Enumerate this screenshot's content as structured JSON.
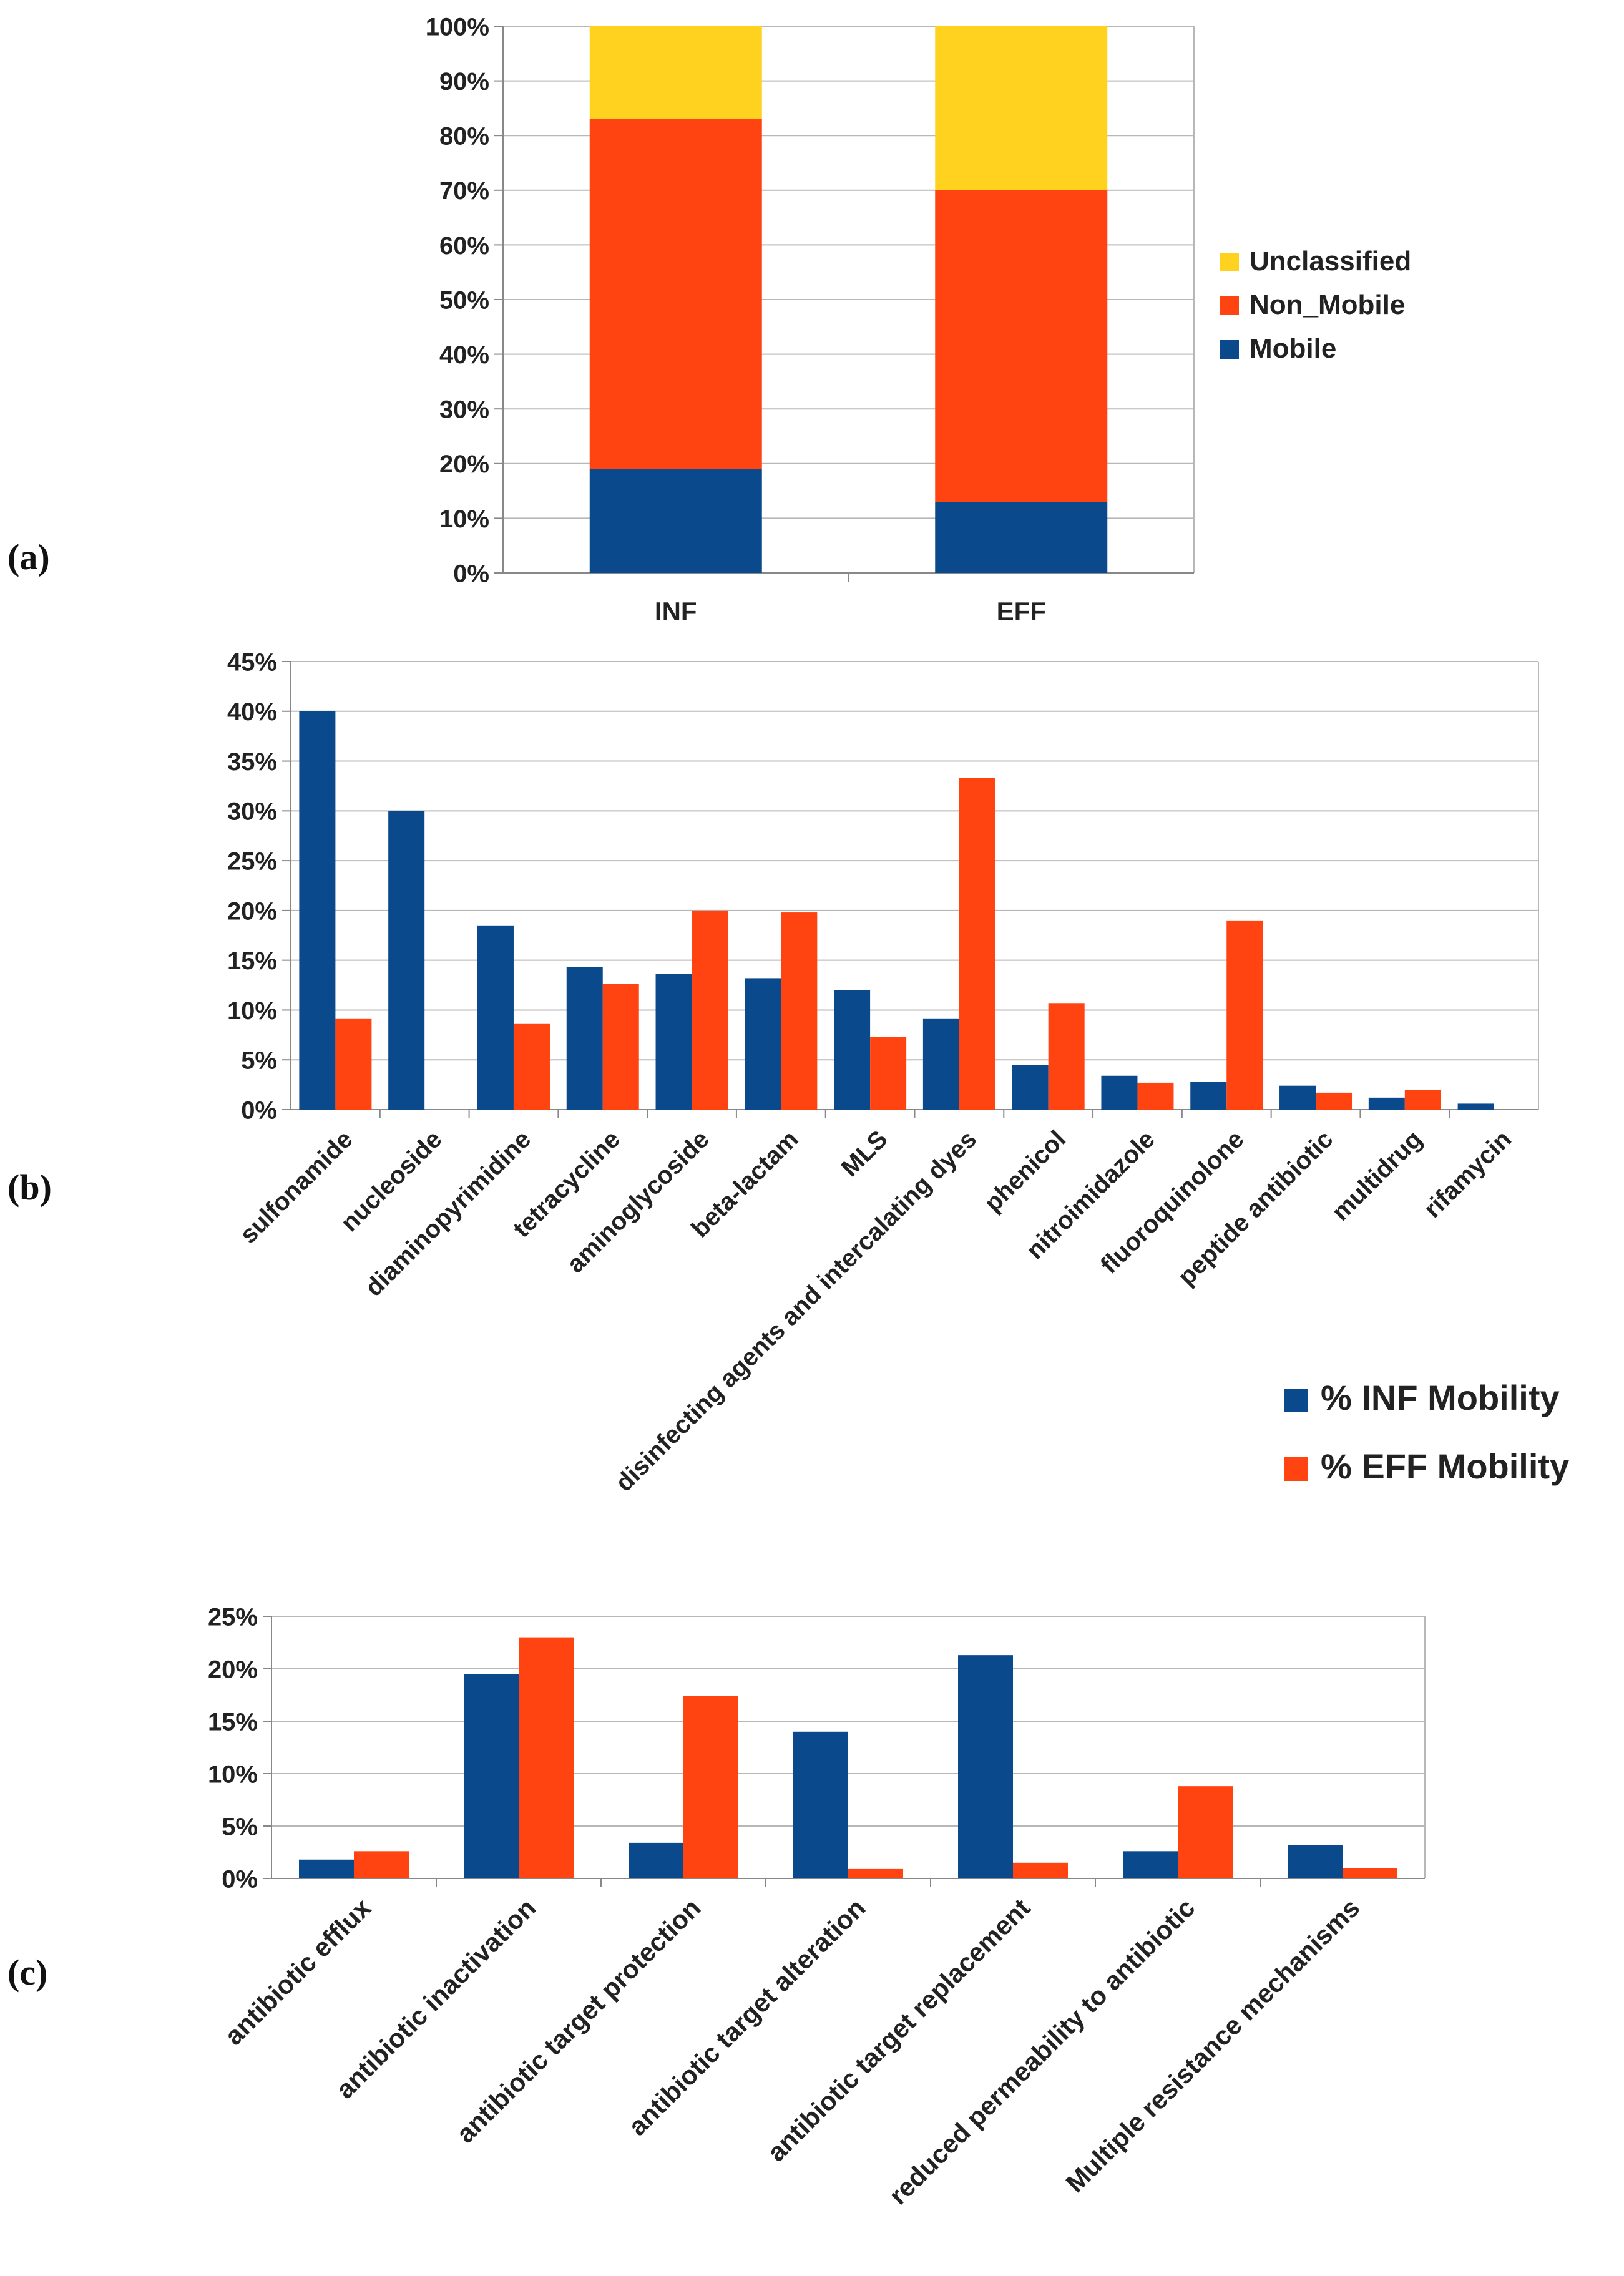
{
  "colors": {
    "mobile": "#0a4a8c",
    "non_mobile": "#ff4411",
    "unclassified": "#ffd21f",
    "grid": "#b8b8b8",
    "axis": "#888888"
  },
  "panel_labels": [
    "(a)",
    "(b)",
    "(c)"
  ],
  "chart_data": [
    {
      "id": "a",
      "type": "bar",
      "stacked": true,
      "title": "",
      "xlabel": "",
      "ylabel": "",
      "categories": [
        "INF",
        "EFF"
      ],
      "series": [
        {
          "name": "Mobile",
          "color_key": "mobile",
          "values": [
            19,
            13
          ]
        },
        {
          "name": "Non_Mobile",
          "color_key": "non_mobile",
          "values": [
            64,
            57
          ]
        },
        {
          "name": "Unclassified",
          "color_key": "unclassified",
          "values": [
            17,
            30
          ]
        }
      ],
      "ylim": [
        0,
        100
      ],
      "yticks": [
        0,
        10,
        20,
        30,
        40,
        50,
        60,
        70,
        80,
        90,
        100
      ],
      "grid": true,
      "legend": "right",
      "legend_order": [
        "Unclassified",
        "Non_Mobile",
        "Mobile"
      ]
    },
    {
      "id": "b",
      "type": "bar",
      "title": "",
      "xlabel": "",
      "ylabel": "",
      "categories": [
        "sulfonamide",
        "nucleoside",
        "diaminopyrimidine",
        "tetracycline",
        "aminoglycoside",
        "beta-lactam",
        "MLS",
        "disinfecting agents and intercalating dyes",
        "phenicol",
        "nitroimidazole",
        "fluoroquinolone",
        "peptide antibiotic",
        "multidrug",
        "rifamycin"
      ],
      "series": [
        {
          "name": "% INF Mobility",
          "color_key": "mobile",
          "values": [
            40,
            30,
            18.5,
            14.3,
            13.6,
            13.2,
            12,
            9.1,
            4.5,
            3.4,
            2.8,
            2.4,
            1.2,
            0.6
          ]
        },
        {
          "name": "% EFF Mobility",
          "color_key": "non_mobile",
          "values": [
            9.1,
            0,
            8.6,
            12.6,
            20,
            19.8,
            7.3,
            33.3,
            10.7,
            2.7,
            19,
            1.7,
            2,
            0
          ]
        }
      ],
      "ylim": [
        0,
        45
      ],
      "yticks": [
        0,
        5,
        10,
        15,
        20,
        25,
        30,
        35,
        40,
        45
      ],
      "grid": true,
      "legend": "bottom-right"
    },
    {
      "id": "c",
      "type": "bar",
      "title": "",
      "xlabel": "",
      "ylabel": "",
      "categories": [
        "antibiotic efflux",
        "antibiotic inactivation",
        "antibiotic target protection",
        "antibiotic target alteration",
        "antibiotic target replacement",
        "reduced permeability to antibiotic",
        "Multiple resistance mechanisms"
      ],
      "series": [
        {
          "name": "% INF Mobility",
          "color_key": "mobile",
          "values": [
            1.8,
            19.5,
            3.4,
            14,
            21.3,
            2.6,
            3.2
          ]
        },
        {
          "name": "% EFF Mobility",
          "color_key": "non_mobile",
          "values": [
            2.6,
            23,
            17.4,
            0.9,
            1.5,
            8.8,
            1
          ]
        }
      ],
      "ylim": [
        0,
        25
      ],
      "yticks": [
        0,
        5,
        10,
        15,
        20,
        25
      ],
      "grid": true,
      "legend": "none"
    }
  ]
}
